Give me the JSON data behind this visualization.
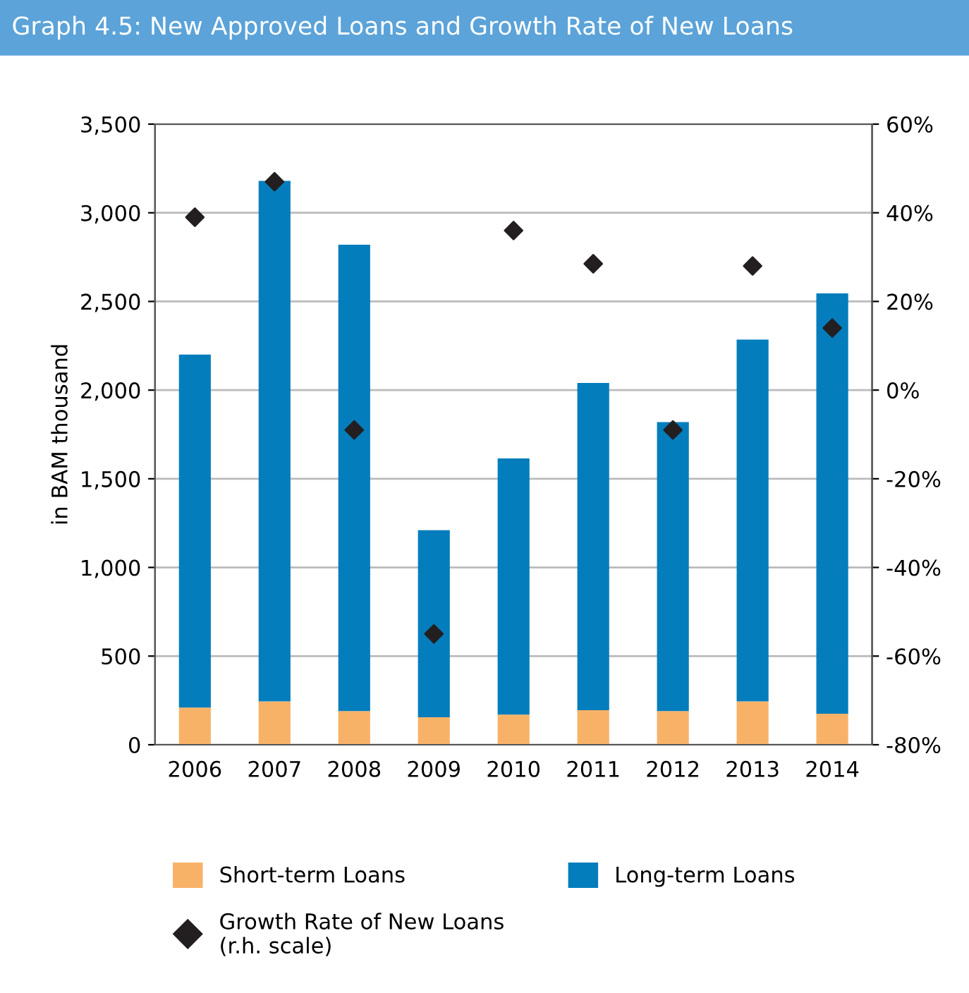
{
  "chart_data": {
    "type": "bar",
    "title": "Graph 4.5: New Approved Loans and Growth Rate of New Loans",
    "ylabel": "in BAM thousand",
    "stacked": true,
    "categories": [
      "2006",
      "2007",
      "2008",
      "2009",
      "2010",
      "2011",
      "2012",
      "2013",
      "2014"
    ],
    "series": [
      {
        "name": "Short-term Loans",
        "color": "#f8b267",
        "values": [
          210,
          245,
          190,
          155,
          170,
          195,
          190,
          245,
          175
        ]
      },
      {
        "name": "Long-term Loans",
        "color": "#047dbc",
        "values": [
          1990,
          2935,
          2630,
          1055,
          1445,
          1845,
          1630,
          2040,
          2370
        ]
      },
      {
        "name": "Growth Rate of New Loans\n(r.h. scale)",
        "type": "scatter",
        "axis": "y2",
        "marker": "diamond",
        "color": "#231f20",
        "values": [
          39,
          47,
          -9,
          -55,
          36,
          28.5,
          -9,
          28,
          14
        ]
      }
    ],
    "ylim": [
      0,
      3500
    ],
    "yticks": [
      {
        "value": 0,
        "label": "0"
      },
      {
        "value": 500,
        "label": "500"
      },
      {
        "value": 1000,
        "label": "1,000"
      },
      {
        "value": 1500,
        "label": "1,500"
      },
      {
        "value": 2000,
        "label": "2,000"
      },
      {
        "value": 2500,
        "label": "2,500"
      },
      {
        "value": 3000,
        "label": "3,000"
      },
      {
        "value": 3500,
        "label": "3,500"
      }
    ],
    "y2lim": [
      -80,
      60
    ],
    "y2ticks": [
      {
        "value": -80,
        "label": "-80%"
      },
      {
        "value": -60,
        "label": "-60%"
      },
      {
        "value": -40,
        "label": "-40%"
      },
      {
        "value": -20,
        "label": "-20%"
      },
      {
        "value": 0,
        "label": "0%"
      },
      {
        "value": 20,
        "label": "20%"
      },
      {
        "value": 40,
        "label": "40%"
      },
      {
        "value": 60,
        "label": "60%"
      }
    ],
    "grid": "y",
    "legend": "bottom"
  }
}
